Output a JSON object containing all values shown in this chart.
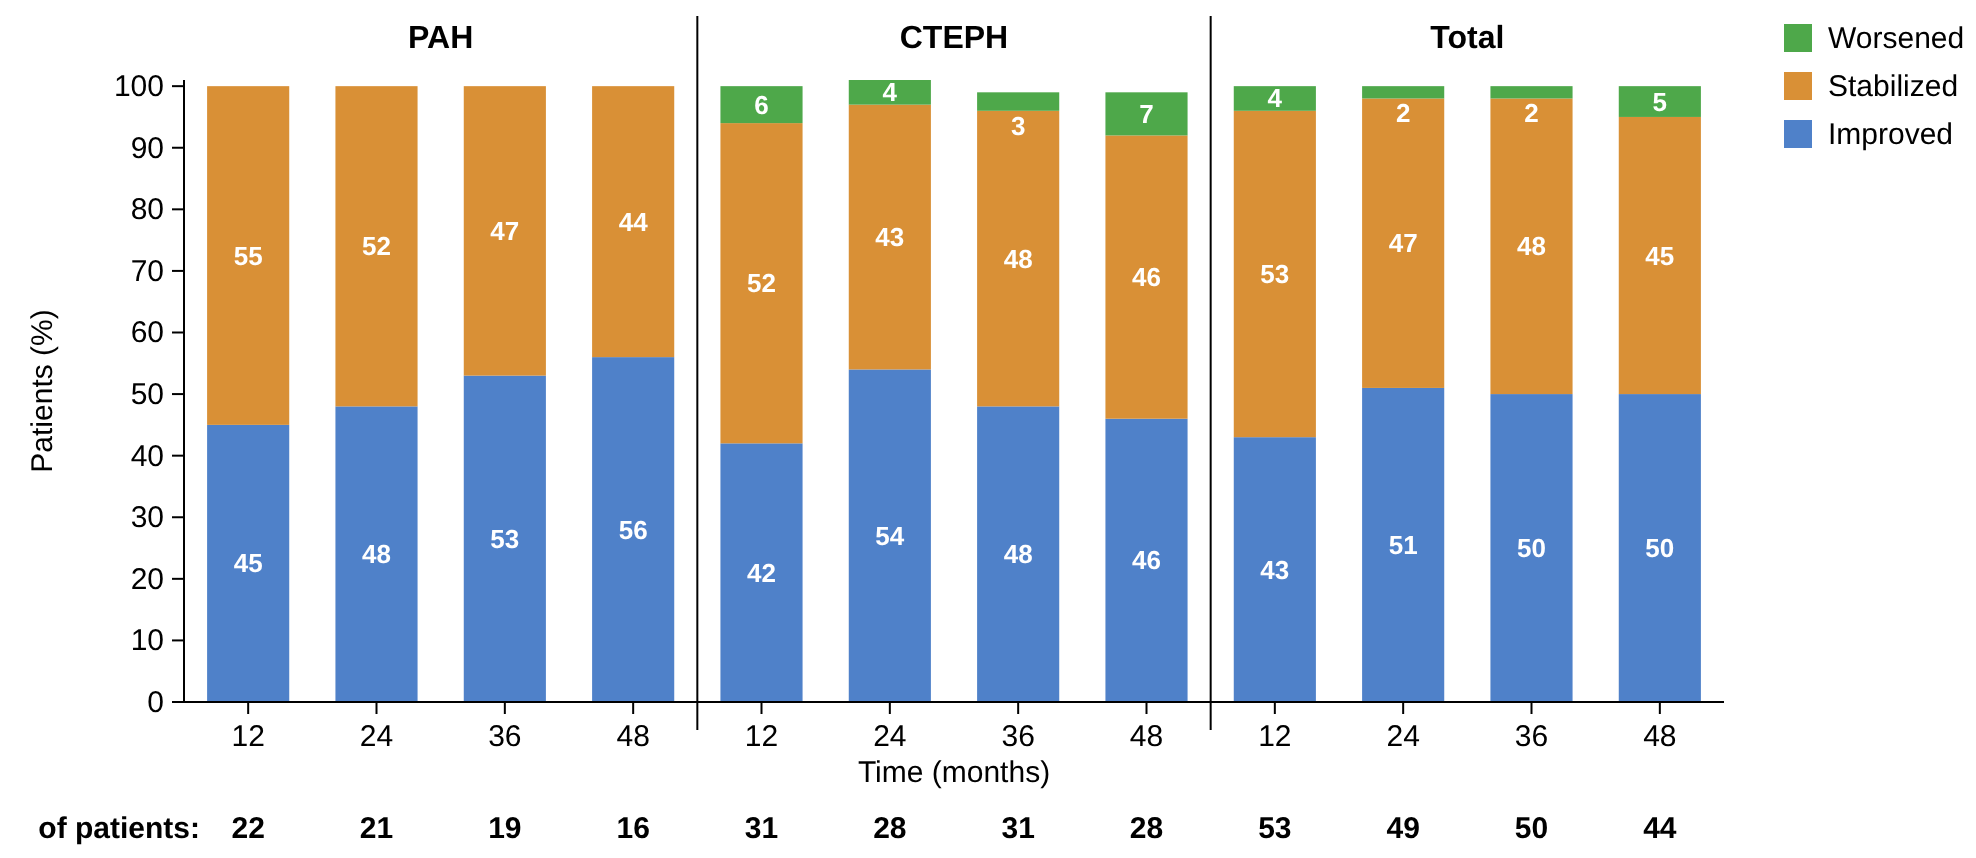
{
  "chart_data": {
    "type": "bar",
    "stacked": true,
    "ylabel": "Patients (%)",
    "xlabel": "Time (months)",
    "categories": [
      "12",
      "24",
      "36",
      "48",
      "12",
      "24",
      "36",
      "48",
      "12",
      "24",
      "36",
      "48"
    ],
    "series": [
      {
        "name": "Improved",
        "color": "#4f81c9",
        "values": [
          45,
          48,
          53,
          56,
          42,
          54,
          48,
          46,
          43,
          51,
          50,
          50
        ],
        "value_labels": [
          "45",
          "48",
          "53",
          "56",
          "42",
          "54",
          "48",
          "46",
          "43",
          "51",
          "50",
          "50"
        ]
      },
      {
        "name": "Stabilized",
        "color": "#d99036",
        "values": [
          55,
          52,
          47,
          44,
          52,
          43,
          48,
          46,
          53,
          47,
          48,
          45
        ],
        "value_labels": [
          "55",
          "52",
          "47",
          "44",
          "52",
          "43",
          "48",
          "46",
          "53",
          "47",
          "48",
          "45"
        ]
      },
      {
        "name": "Worsened",
        "color": "#4ea84a",
        "values": [
          0,
          0,
          0,
          0,
          6,
          4,
          3,
          7,
          4,
          2,
          2,
          5
        ],
        "value_labels": [
          null,
          null,
          null,
          null,
          "6",
          "4",
          "3",
          "7",
          "4",
          "2",
          "2",
          "5"
        ]
      }
    ],
    "ylim": [
      0,
      101
    ],
    "yticks": [
      0,
      10,
      20,
      30,
      40,
      50,
      60,
      70,
      80,
      90,
      100
    ],
    "grid": false,
    "legend": "top right",
    "annotations": [
      "PAH",
      "CTEPH",
      "Total",
      "of patients:",
      "22",
      "21",
      "19",
      "16",
      "31",
      "28",
      "31",
      "28",
      "53",
      "49",
      "50",
      "44"
    ]
  }
}
